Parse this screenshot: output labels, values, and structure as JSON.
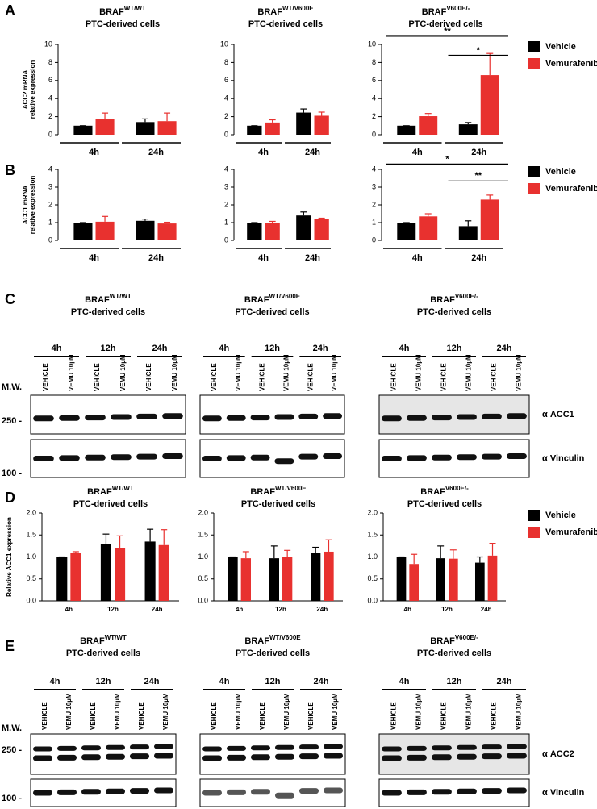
{
  "panel_labels": [
    "A",
    "B",
    "C",
    "D",
    "E"
  ],
  "chart_data": [
    {
      "type": "bar",
      "title": {
        "text": "BRAF",
        "superscript": "WT/WT"
      },
      "subtitle": "PTC-derived cells",
      "ylabel": [
        "ACC2 mRNA",
        "relative expression"
      ],
      "categories": [
        "4h",
        "24h"
      ],
      "series": [
        {
          "color": "#000000",
          "values": [
            1,
            1.4
          ],
          "errors": [
            0,
            0.35
          ]
        },
        {
          "color": "#e8312f",
          "values": [
            1.7,
            1.5
          ],
          "errors": [
            0.7,
            0.9
          ]
        }
      ],
      "ylim": [
        0,
        10
      ],
      "yticks": [
        0,
        2,
        4,
        6,
        8,
        10
      ],
      "group_lines": true
    },
    {
      "type": "bar",
      "title": {
        "text": "BRAF",
        "superscript": "WT/V600E"
      },
      "subtitle": "PTC-derived cells",
      "categories": [
        "4h",
        "24h"
      ],
      "series": [
        {
          "color": "#000000",
          "values": [
            1,
            2.45
          ],
          "errors": [
            0,
            0.4
          ]
        },
        {
          "color": "#e8312f",
          "values": [
            1.35,
            2.1
          ],
          "errors": [
            0.3,
            0.4
          ]
        }
      ],
      "ylim": [
        0,
        10
      ],
      "yticks": [
        0,
        2,
        4,
        6,
        8,
        10
      ],
      "group_lines": true
    },
    {
      "type": "bar",
      "title": {
        "text": "BRAF",
        "superscript": "V600E/-"
      },
      "subtitle": "PTC-derived cells",
      "categories": [
        "4h",
        "24h"
      ],
      "series": [
        {
          "name": "Vehicle",
          "color": "#000000",
          "values": [
            1,
            1.15
          ],
          "errors": [
            0,
            0.2
          ]
        },
        {
          "name": "Vemurafenib",
          "color": "#e8312f",
          "values": [
            2.05,
            6.6
          ],
          "errors": [
            0.3,
            2.4
          ]
        }
      ],
      "ylim": [
        0,
        10
      ],
      "yticks": [
        0,
        2,
        4,
        6,
        8,
        10
      ],
      "group_lines": true,
      "annotations": [
        {
          "text": "**",
          "y": 10.9
        },
        {
          "text": "*",
          "y": 8.8
        }
      ],
      "legend": "right"
    },
    {
      "type": "bar",
      "ylabel": [
        "ACC1 mRNA",
        "relative expression"
      ],
      "categories": [
        "4h",
        "24h"
      ],
      "series": [
        {
          "color": "#000000",
          "values": [
            1,
            1.1
          ],
          "errors": [
            0,
            0.1
          ]
        },
        {
          "color": "#e8312f",
          "values": [
            1.05,
            0.95
          ],
          "errors": [
            0.3,
            0.07
          ]
        }
      ],
      "ylim": [
        0,
        4
      ],
      "yticks": [
        0,
        1,
        2,
        3,
        4
      ],
      "group_lines": true
    },
    {
      "type": "bar",
      "categories": [
        "4h",
        "24h"
      ],
      "series": [
        {
          "color": "#000000",
          "values": [
            1,
            1.4
          ],
          "errors": [
            0,
            0.2
          ]
        },
        {
          "color": "#e8312f",
          "values": [
            1,
            1.2
          ],
          "errors": [
            0.07,
            0.05
          ]
        }
      ],
      "ylim": [
        0,
        4
      ],
      "yticks": [
        0,
        1,
        2,
        3,
        4
      ],
      "group_lines": true
    },
    {
      "type": "bar",
      "categories": [
        "4h",
        "24h"
      ],
      "series": [
        {
          "name": "Vehicle",
          "color": "#000000",
          "values": [
            1,
            0.8
          ],
          "errors": [
            0,
            0.3
          ]
        },
        {
          "name": "Vemurafenib",
          "color": "#e8312f",
          "values": [
            1.35,
            2.3
          ],
          "errors": [
            0.15,
            0.25
          ]
        }
      ],
      "ylim": [
        0,
        4
      ],
      "yticks": [
        0,
        1,
        2,
        3,
        4
      ],
      "group_lines": true,
      "annotations": [
        {
          "text": "*",
          "y": 4.3
        },
        {
          "text": "**",
          "y": 3.35
        }
      ],
      "legend": "right"
    },
    {
      "type": "bar",
      "title": {
        "text": "BRAF",
        "superscript": "WT/WT"
      },
      "subtitle": "PTC-derived cells",
      "ylabel": [
        "Relative ACC1 expression"
      ],
      "categories": [
        "4h",
        "12h",
        "24h"
      ],
      "series": [
        {
          "color": "#000000",
          "values": [
            1,
            1.3,
            1.35
          ],
          "errors": [
            0,
            0.22,
            0.28
          ]
        },
        {
          "color": "#e8312f",
          "values": [
            1.1,
            1.2,
            1.27
          ],
          "errors": [
            0.02,
            0.28,
            0.35
          ]
        }
      ],
      "ylim": [
        0,
        2
      ],
      "yticks": [
        {
          "value": 0,
          "label": "0.0"
        },
        {
          "value": 0.5,
          "label": "0.5"
        },
        {
          "value": 1,
          "label": "1.0"
        },
        {
          "value": 1.5,
          "label": "1.5"
        },
        {
          "value": 2,
          "label": "2.0"
        }
      ],
      "group_lines": false
    },
    {
      "type": "bar",
      "title": {
        "text": "BRAF",
        "superscript": "WT/V600E"
      },
      "subtitle": "PTC-derived cells",
      "categories": [
        "4h",
        "12h",
        "24h"
      ],
      "series": [
        {
          "color": "#000000",
          "values": [
            1,
            0.97,
            1.1
          ],
          "errors": [
            0,
            0.28,
            0.12
          ]
        },
        {
          "color": "#e8312f",
          "values": [
            0.97,
            1,
            1.12
          ],
          "errors": [
            0.15,
            0.15,
            0.27
          ]
        }
      ],
      "ylim": [
        0,
        2
      ],
      "yticks": [
        {
          "value": 0,
          "label": "0.0"
        },
        {
          "value": 0.5,
          "label": "0.5"
        },
        {
          "value": 1,
          "label": "1.0"
        },
        {
          "value": 1.5,
          "label": "1.5"
        },
        {
          "value": 2,
          "label": "2.0"
        }
      ],
      "group_lines": false
    },
    {
      "type": "bar",
      "title": {
        "text": "BRAF",
        "superscript": "V600E/-"
      },
      "subtitle": "PTC-derived cells",
      "categories": [
        "4h",
        "12h",
        "24h"
      ],
      "series": [
        {
          "name": "Vehicle",
          "color": "#000000",
          "values": [
            1,
            0.97,
            0.87
          ],
          "errors": [
            0,
            0.28,
            0.13
          ]
        },
        {
          "name": "Vemurafenib",
          "color": "#e8312f",
          "values": [
            0.84,
            0.96,
            1.03
          ],
          "errors": [
            0.22,
            0.2,
            0.28
          ]
        }
      ],
      "ylim": [
        0,
        2
      ],
      "yticks": [
        {
          "value": 0,
          "label": "0.0"
        },
        {
          "value": 0.5,
          "label": "0.5"
        },
        {
          "value": 1,
          "label": "1.0"
        },
        {
          "value": 1.5,
          "label": "1.5"
        },
        {
          "value": 2,
          "label": "2.0"
        }
      ],
      "group_lines": false,
      "legend": "right"
    }
  ],
  "blot_panels": [
    {
      "mw_label": "M.W.",
      "markers": [
        "250 -",
        "100 -"
      ],
      "antibodies": [
        "α ACC1",
        "α Vinculin"
      ],
      "blots": [
        {
          "title": {
            "text": "BRAF",
            "superscript": "WT/WT"
          },
          "subtitle": "PTC-derived cells",
          "timepoints": [
            "4h",
            "12h",
            "24h"
          ],
          "lanes": [
            "VEHICLE",
            "VEMU 10µM",
            "VEHICLE",
            "VEMU 10µM",
            "VEHICLE",
            "VEMU 10µM"
          ]
        },
        {
          "title": {
            "text": "BRAF",
            "superscript": "WT/V600E"
          },
          "subtitle": "PTC-derived cells",
          "timepoints": [
            "4h",
            "12h",
            "24h"
          ],
          "lanes": [
            "VEHICLE",
            "VEMU 10µM",
            "VEHICLE",
            "VEMU 10µM",
            "VEHICLE",
            "VEMU 10µM"
          ]
        },
        {
          "title": {
            "text": "BRAF",
            "superscript": "V600E/-"
          },
          "subtitle": "PTC-derived cells",
          "timepoints": [
            "4h",
            "12h",
            "24h"
          ],
          "lanes": [
            "VEHICLE",
            "VEMU 10µM",
            "VEHICLE",
            "VEMU 10µM",
            "VEHICLE",
            "VEMU 10µM"
          ]
        }
      ]
    },
    {
      "mw_label": "M.W.",
      "markers": [
        "250 -",
        "100 -"
      ],
      "antibodies": [
        "α ACC2",
        "α Vinculin"
      ],
      "blots": [
        {
          "title": {
            "text": "BRAF",
            "superscript": "WT/WT"
          },
          "subtitle": "PTC-derived cells",
          "timepoints": [
            "4h",
            "12h",
            "24h"
          ],
          "lanes": [
            "VEHICLE",
            "VEMU 10µM",
            "VEHICLE",
            "VEMU 10µM",
            "VEHICLE",
            "VEMU 10µM"
          ]
        },
        {
          "title": {
            "text": "BRAF",
            "superscript": "WT/V600E"
          },
          "subtitle": "PTC-derived cells",
          "timepoints": [
            "4h",
            "12h",
            "24h"
          ],
          "lanes": [
            "VEHICLE",
            "VEMU 10µM",
            "VEHICLE",
            "VEMU 10µM",
            "VEHICLE",
            "VEMU 10µM"
          ]
        },
        {
          "title": {
            "text": "BRAF",
            "superscript": "V600E/-"
          },
          "subtitle": "PTC-derived cells",
          "timepoints": [
            "4h",
            "12h",
            "24h"
          ],
          "lanes": [
            "VEHICLE",
            "VEMU 10µM",
            "VEHICLE",
            "VEMU 10µM",
            "VEHICLE",
            "VEMU 10µM"
          ]
        }
      ]
    }
  ]
}
